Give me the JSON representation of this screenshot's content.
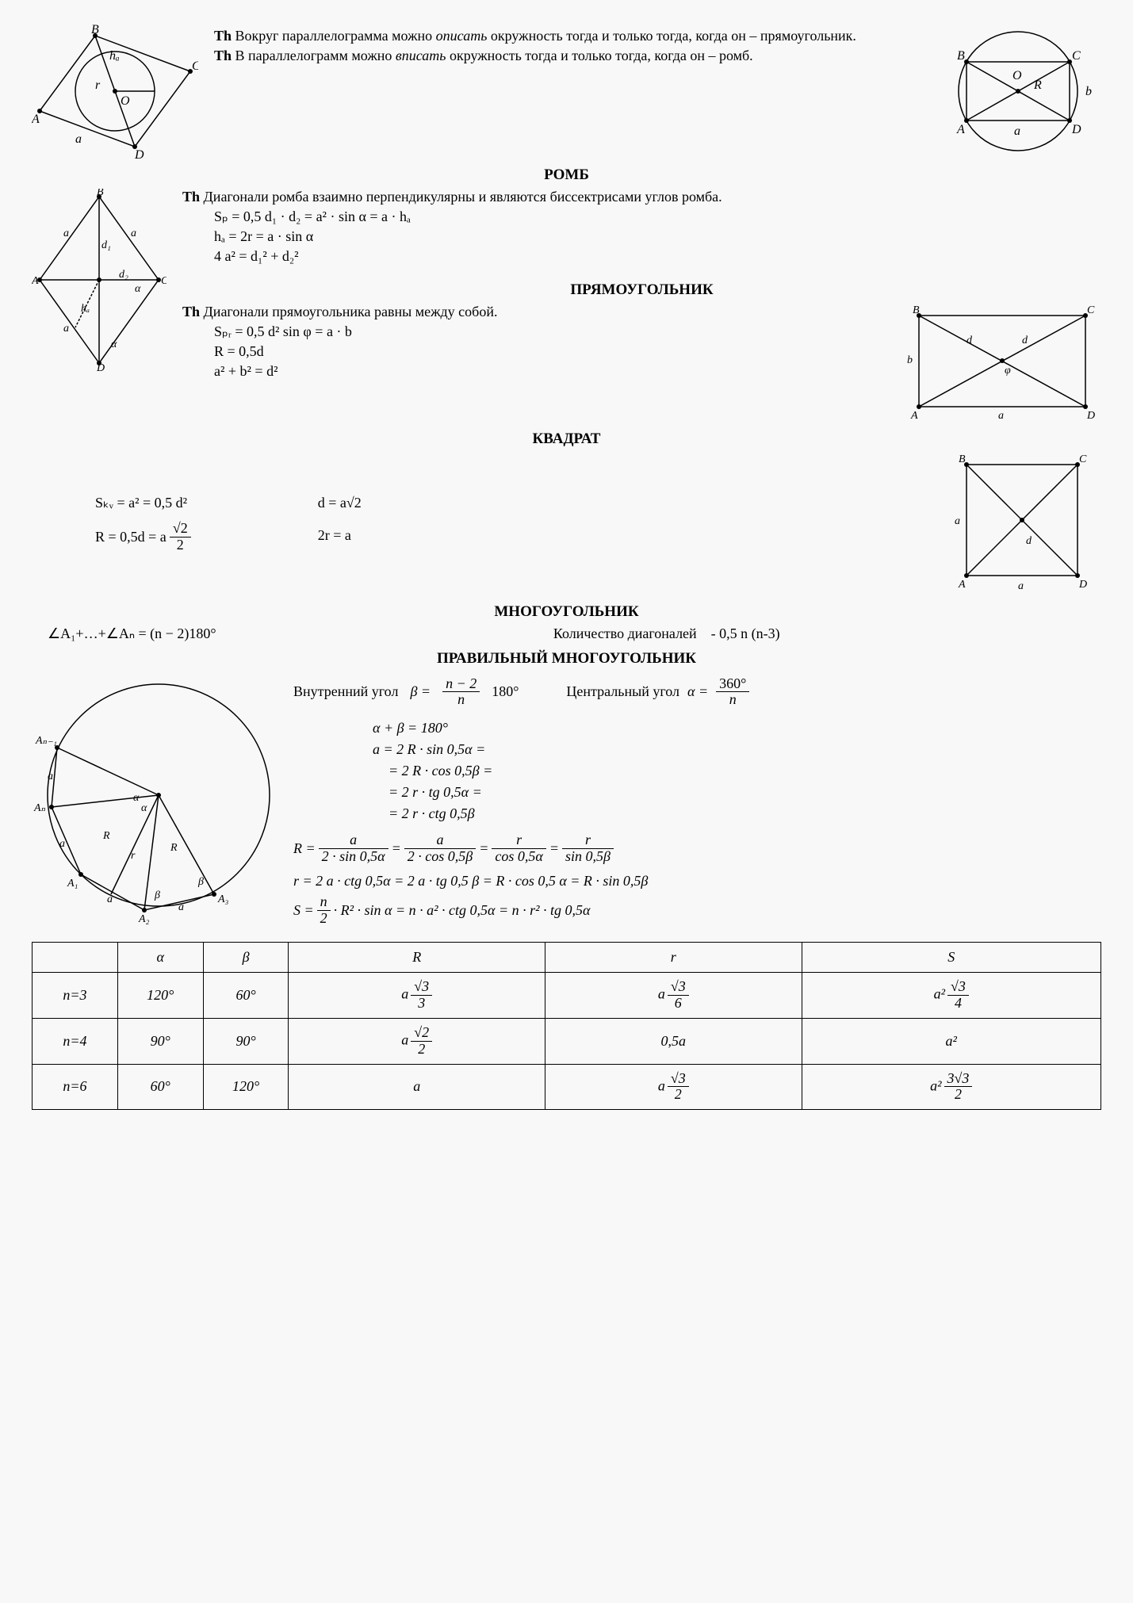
{
  "top": {
    "th1_prefix": "Th",
    "th1_text": " Вокруг параллелограмма можно ",
    "th1_em": "описать",
    "th1_text2": " окружность тогда и только тогда, когда он – прямоугольник.",
    "th2_prefix": "Th",
    "th2_text": " В параллелограмм можно ",
    "th2_em": "вписать",
    "th2_text2": " окружность тогда и только тогда, когда он – ромб."
  },
  "romb": {
    "title": "РОМБ",
    "th_prefix": "Th",
    "th_text": "Диагонали ромба взаимно перпендикулярны и являются биссектрисами углов ромба.",
    "f1": "Sₚ = 0,5 d₁ · d₂ = a² · sin α = a · hₐ",
    "f2": "hₐ = 2r = a · sin α",
    "f3": "4 a² = d₁² + d₂²"
  },
  "rect": {
    "title": "ПРЯМОУГОЛЬНИК",
    "th_prefix": "Th",
    "th_text": "Диагонали прямоугольника равны между собой.",
    "f1": "Sₚᵣ = 0,5 d² sin φ = a · b",
    "f2": "R = 0,5d",
    "f3": "a² + b² = d²"
  },
  "square": {
    "title": "КВАДРАТ",
    "f1": "Sₖᵥ = a² = 0,5 d²",
    "f2_left": "R = 0,5d = a",
    "f2_num": "√2",
    "f2_den": "2",
    "f3": "d = a√2",
    "f4": "2r = a"
  },
  "polygon": {
    "title": "МНОГОУГОЛЬНИК",
    "angle_sum": "∠A₁+…+∠Aₙ = (n − 2)180°",
    "diag_label": "Количество диагоналей",
    "diag_formula": "- 0,5 n (n-3)"
  },
  "regular": {
    "title": "ПРАВИЛЬНЫЙ МНОГОУГОЛЬНИК",
    "inner_label": "Внутренний угол",
    "inner_beta": "β =",
    "inner_num": "n − 2",
    "inner_den": "n",
    "inner_suffix": "180°",
    "central_label": "Центральный угол",
    "central_alpha": "α =",
    "central_num": "360°",
    "central_den": "n",
    "ab": "α + β = 180°",
    "a1": "a = 2 R · sin 0,5α =",
    "a2": "= 2 R · cos 0,5β =",
    "a3": "= 2 r · tg 0,5α =",
    "a4": "= 2 r · ctg 0,5β",
    "R_eq": "R =",
    "R_num1": "a",
    "R_den1": "2 · sin 0,5α",
    "R_num2": "a",
    "R_den2": "2 · cos 0,5β",
    "R_num3": "r",
    "R_den3": "cos 0,5α",
    "R_num4": "r",
    "R_den4": "sin 0,5β",
    "r_line": "r = 2 a · ctg 0,5α = 2 a · tg 0,5 β = R · cos 0,5 α = R · sin 0,5β",
    "S_eq": "S =",
    "S_num": "n",
    "S_den": "2",
    "S_rest": " · R² · sin α = n · a² · ctg 0,5α = n · r² · tg 0,5α"
  },
  "table": {
    "headers": [
      "",
      "α",
      "β",
      "R",
      "r",
      "S"
    ],
    "rows": [
      {
        "n": "n=3",
        "alpha": "120°",
        "beta": "60°",
        "R_pre": "a",
        "R_num": "√3",
        "R_den": "3",
        "r_pre": "a",
        "r_num": "√3",
        "r_den": "6",
        "S_pre": "a²",
        "S_num": "√3",
        "S_den": "4"
      },
      {
        "n": "n=4",
        "alpha": "90°",
        "beta": "90°",
        "R_pre": "a",
        "R_num": "√2",
        "R_den": "2",
        "r_text": "0,5a",
        "S_text": "a²"
      },
      {
        "n": "n=6",
        "alpha": "60°",
        "beta": "120°",
        "R_text": "a",
        "r_pre": "a",
        "r_num": "√3",
        "r_den": "2",
        "S_pre": "a²",
        "S_num": "3√3",
        "S_den": "2"
      }
    ]
  },
  "colors": {
    "stroke": "#000000",
    "bg": "#f8f8f8"
  }
}
